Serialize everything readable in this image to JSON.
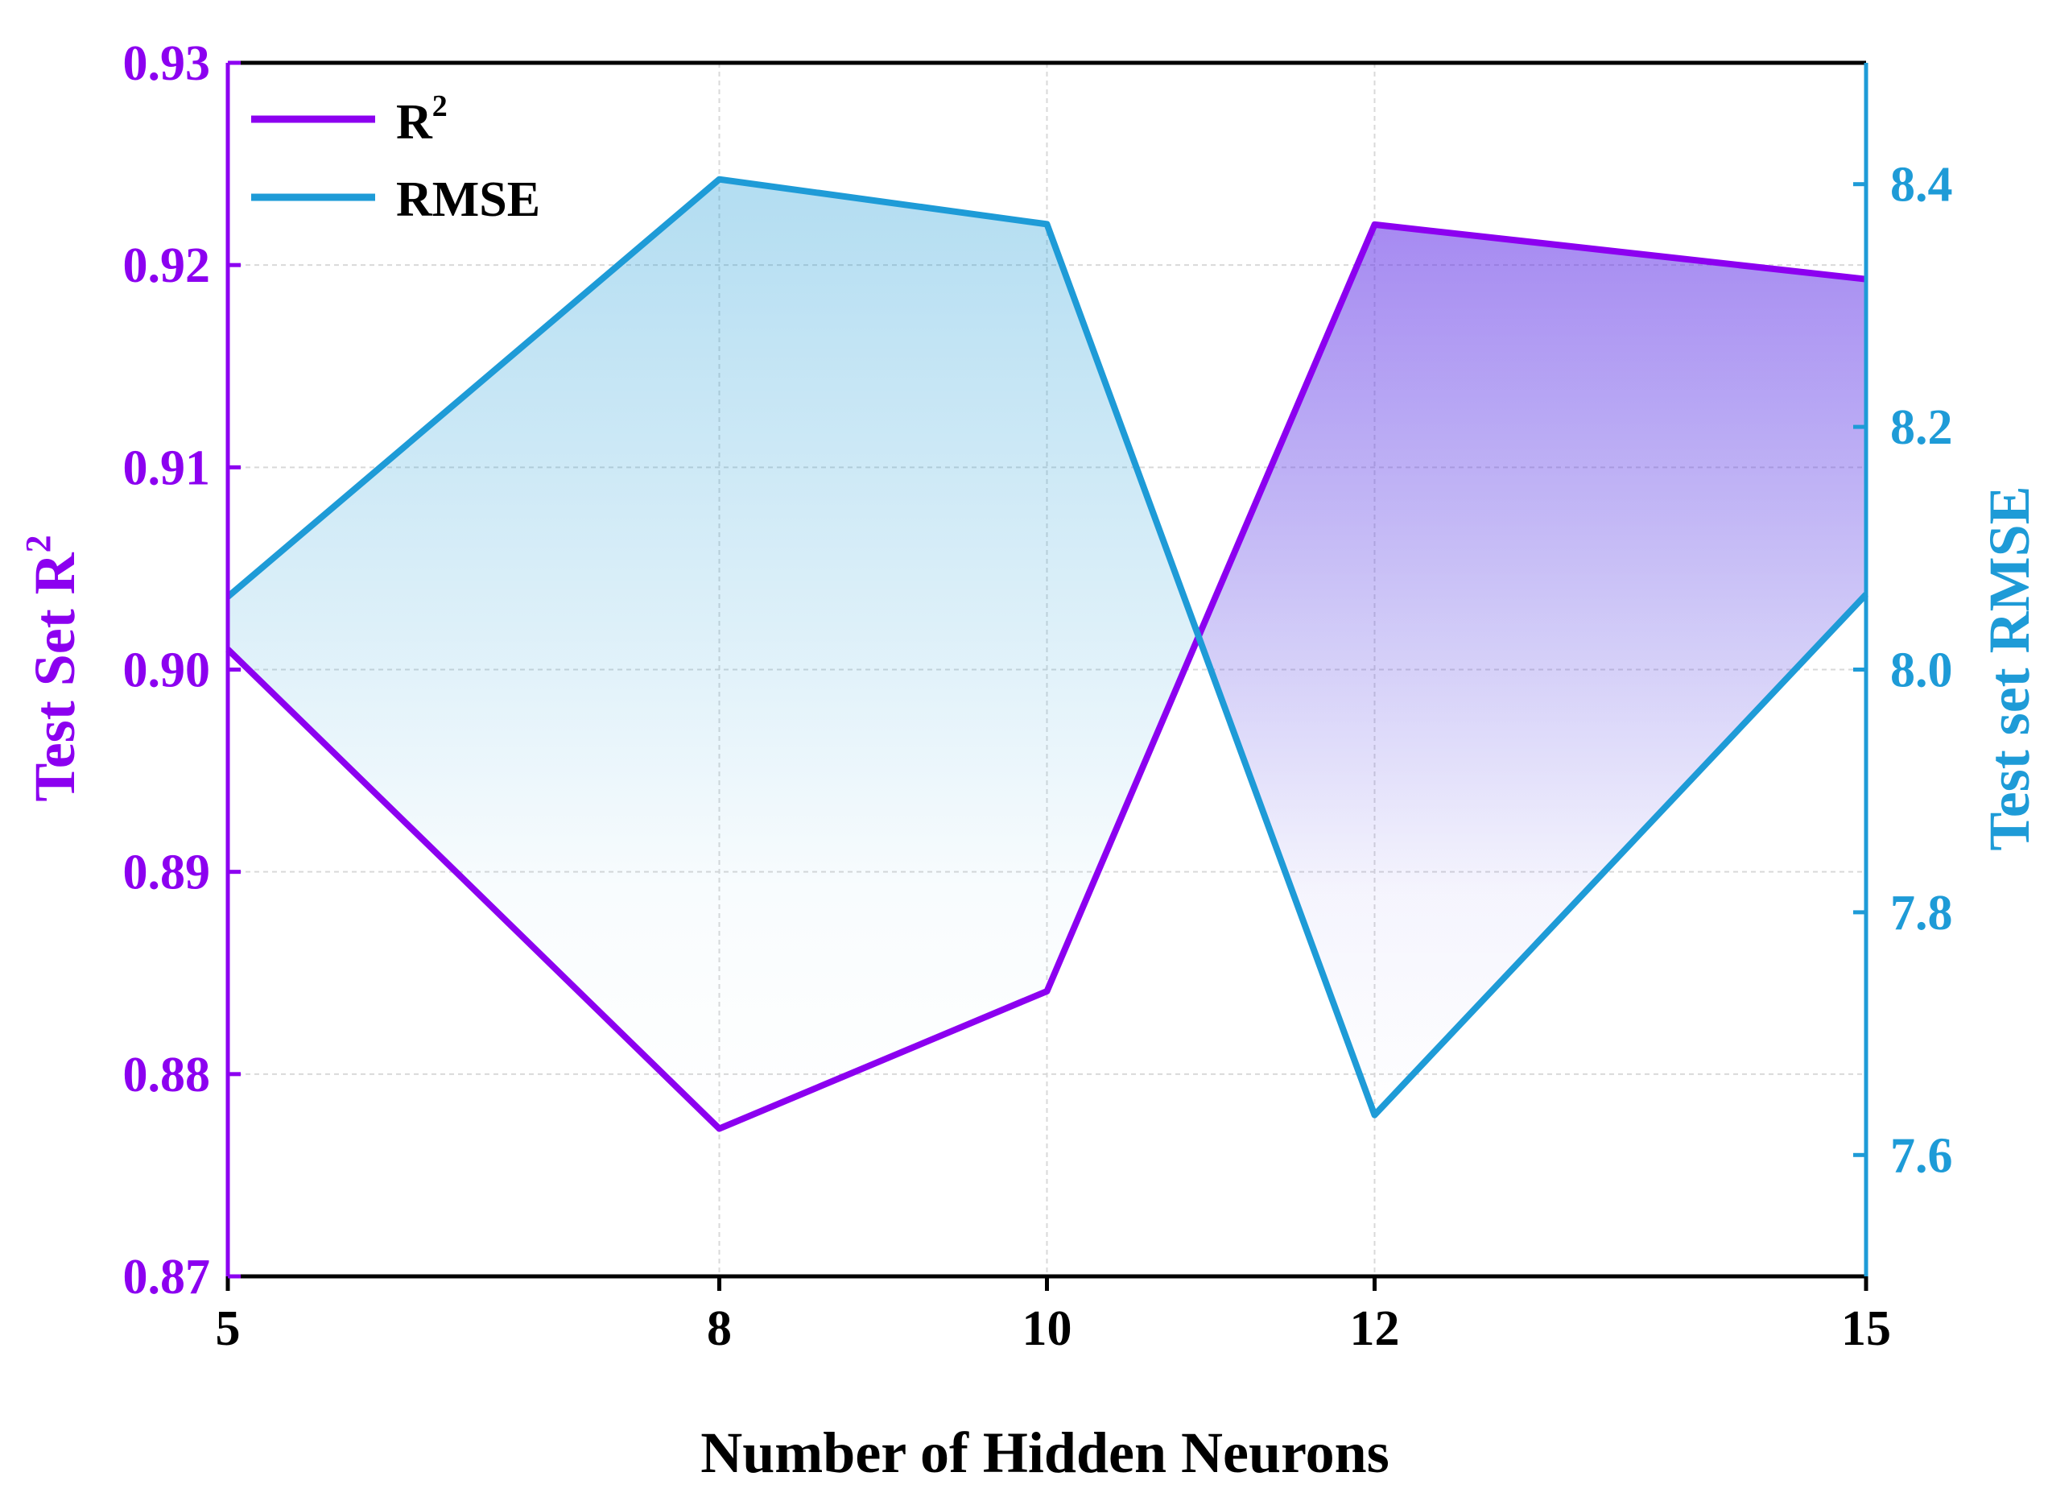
{
  "colors": {
    "r2": "#8C00F0",
    "rmse": "#1E9BD7",
    "axis": "#000000",
    "grid": "#d9d9d9"
  },
  "chart_data": {
    "type": "line",
    "x": [
      5,
      8,
      10,
      12,
      15
    ],
    "x_tick_labels": [
      "5",
      "8",
      "10",
      "12",
      "15"
    ],
    "xlabel": "Number of Hidden Neurons",
    "ylabel_left": {
      "text": "Test Set R",
      "sup": "2"
    },
    "ylabel_right": "Test set RMSE",
    "ylim_left": [
      0.87,
      0.93
    ],
    "ylim_right": [
      7.5,
      8.5
    ],
    "y_left_ticks": [
      0.87,
      0.88,
      0.89,
      0.9,
      0.91,
      0.92,
      0.93
    ],
    "y_left_tick_labels": [
      "0.87",
      "0.88",
      "0.89",
      "0.90",
      "0.91",
      "0.92",
      "0.93"
    ],
    "y_right_ticks": [
      7.6,
      7.8,
      8.0,
      8.2,
      8.4
    ],
    "y_right_tick_labels": [
      "7.6",
      "7.8",
      "8.0",
      "8.2",
      "8.4"
    ],
    "grid": true,
    "legend_position": "top-left",
    "series": [
      {
        "name": "R",
        "name_sup": "2",
        "axis": "left",
        "values": [
          0.901,
          0.8773,
          0.8841,
          0.922,
          0.9193
        ]
      },
      {
        "name": "RMSE",
        "axis": "right",
        "values": [
          8.06,
          8.404,
          8.367,
          7.633,
          8.062
        ]
      }
    ]
  }
}
